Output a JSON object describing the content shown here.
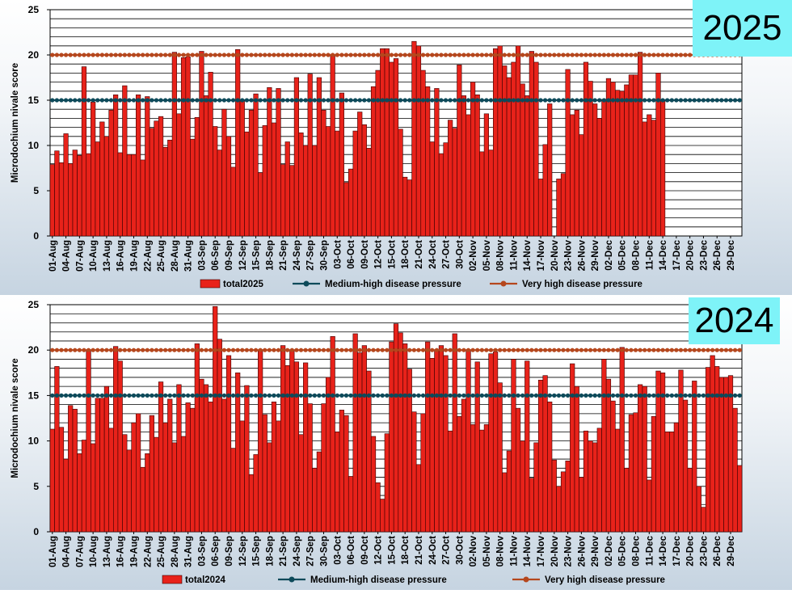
{
  "page": {
    "background": "#ffffff"
  },
  "chart_data": [
    {
      "type": "bar",
      "panel_label": "2025",
      "ylabel": "Microdochium nivale score",
      "ylim": [
        0,
        25
      ],
      "yticks": [
        0,
        5,
        10,
        15,
        20,
        25
      ],
      "x_tick_labels": [
        "01-Aug",
        "04-Aug",
        "07-Aug",
        "10-Aug",
        "13-Aug",
        "16-Aug",
        "19-Aug",
        "22-Aug",
        "25-Aug",
        "28-Aug",
        "31-Aug",
        "03-Sep",
        "06-Sep",
        "09-Sep",
        "12-Sep",
        "15-Sep",
        "18-Sep",
        "21-Sep",
        "24-Sep",
        "27-Sep",
        "30-Sep",
        "03-Oct",
        "06-Oct",
        "09-Oct",
        "12-Oct",
        "15-Oct",
        "18-Oct",
        "21-Oct",
        "24-Oct",
        "27-Oct",
        "30-Oct",
        "02-Nov",
        "05-Nov",
        "08-Nov",
        "11-Nov",
        "14-Nov",
        "17-Nov",
        "20-Nov",
        "23-Nov",
        "26-Nov",
        "29-Nov",
        "02-Dec",
        "05-Dec",
        "08-Dec",
        "11-Dec",
        "14-Dec",
        "17-Dec",
        "20-Dec",
        "23-Dec",
        "26-Dec",
        "29-Dec"
      ],
      "day_count": 153,
      "series": [
        {
          "name": "total2025",
          "color": "#e8221a",
          "values": [
            7.9,
            9.4,
            8.1,
            11.3,
            8.0,
            9.5,
            8.9,
            18.7,
            9.1,
            14.8,
            10.4,
            12.6,
            11.0,
            13.9,
            15.6,
            9.2,
            16.6,
            9.0,
            9.0,
            15.6,
            8.4,
            15.4,
            11.9,
            12.7,
            13.2,
            9.8,
            10.6,
            20.3,
            13.5,
            19.7,
            19.8,
            10.7,
            13.1,
            20.4,
            15.5,
            18.1,
            12.1,
            9.5,
            14.0,
            11.0,
            7.6,
            20.6,
            14.9,
            11.5,
            13.9,
            15.7,
            7.0,
            12.2,
            16.4,
            12.5,
            16.3,
            7.9,
            10.4,
            7.8,
            17.5,
            11.4,
            10.0,
            17.9,
            10.0,
            17.5,
            13.9,
            12.1,
            19.9,
            11.6,
            15.8,
            5.9,
            7.4,
            11.6,
            13.7,
            12.3,
            9.7,
            16.5,
            18.3,
            20.7,
            20.7,
            19.2,
            19.6,
            11.8,
            6.5,
            6.2,
            21.5,
            21.0,
            18.3,
            16.5,
            10.4,
            16.3,
            9.1,
            10.3,
            12.8,
            11.9,
            18.9,
            15.5,
            13.4,
            17.0,
            15.6,
            9.3,
            13.5,
            9.5,
            20.7,
            21.0,
            18.8,
            17.5,
            19.2,
            21.0,
            16.8,
            15.5,
            20.4,
            19.2,
            6.3,
            10.1,
            14.6,
            0,
            6.3,
            6.9,
            18.4,
            13.4,
            13.9,
            11.2,
            19.2,
            17.1,
            14.6,
            13.0,
            15.1,
            17.4,
            17.0,
            16.1,
            16.0,
            16.7,
            17.8,
            17.8,
            20.3,
            12.6,
            13.4,
            12.8,
            18.0,
            15.0,
            0,
            0,
            0,
            0,
            0,
            0,
            0,
            0,
            0,
            0,
            0,
            0,
            0,
            0,
            0,
            0,
            0
          ]
        },
        {
          "name": "Medium-high disease pressure",
          "type": "line",
          "color": "#0d4a5a",
          "values": [
            15
          ]
        },
        {
          "name": "Very high disease pressure",
          "type": "line",
          "color": "#b5471d",
          "values": [
            20
          ]
        }
      ],
      "grid": true,
      "legend_position": "bottom"
    },
    {
      "type": "bar",
      "panel_label": "2024",
      "ylabel": "Microdochium nivale score",
      "ylim": [
        0,
        25
      ],
      "yticks": [
        0,
        5,
        10,
        15,
        20,
        25
      ],
      "x_tick_labels": [
        "01-Aug",
        "04-Aug",
        "07-Aug",
        "10-Aug",
        "13-Aug",
        "16-Aug",
        "19-Aug",
        "22-Aug",
        "25-Aug",
        "28-Aug",
        "31-Aug",
        "03-Sep",
        "06-Sep",
        "09-Sep",
        "12-Sep",
        "15-Sep",
        "18-Sep",
        "21-Sep",
        "24-Sep",
        "27-Sep",
        "30-Sep",
        "03-Oct",
        "06-Oct",
        "09-Oct",
        "12-Oct",
        "15-Oct",
        "18-Oct",
        "21-Oct",
        "24-Oct",
        "27-Oct",
        "30-Oct",
        "02-Nov",
        "05-Nov",
        "08-Nov",
        "11-Nov",
        "14-Nov",
        "17-Nov",
        "20-Nov",
        "23-Nov",
        "26-Nov",
        "29-Nov",
        "02-Dec",
        "05-Dec",
        "08-Dec",
        "11-Dec",
        "14-Dec",
        "17-Dec",
        "20-Dec",
        "23-Dec",
        "26-Dec",
        "29-Dec"
      ],
      "day_count": 153,
      "series": [
        {
          "name": "total2024",
          "color": "#e8221a",
          "values": [
            11.3,
            18.2,
            11.5,
            8.0,
            13.9,
            13.5,
            8.6,
            10.1,
            19.9,
            9.7,
            14.7,
            14.7,
            16.0,
            11.4,
            20.4,
            18.8,
            10.7,
            9.0,
            12.0,
            13.0,
            7.1,
            8.6,
            12.8,
            10.4,
            16.5,
            12.0,
            14.6,
            9.8,
            16.2,
            10.5,
            14.2,
            13.6,
            20.7,
            16.8,
            16.2,
            14.3,
            24.8,
            21.2,
            14.6,
            19.4,
            9.2,
            17.5,
            12.2,
            16.1,
            6.3,
            8.5,
            20.0,
            12.9,
            9.8,
            14.3,
            12.2,
            20.5,
            18.3,
            20.0,
            18.7,
            10.7,
            18.6,
            14.1,
            7.0,
            8.8,
            14.1,
            17.0,
            21.5,
            11.0,
            13.4,
            12.8,
            6.1,
            21.8,
            19.7,
            20.5,
            17.7,
            10.5,
            5.4,
            3.6,
            10.8,
            20.9,
            22.9,
            21.9,
            20.7,
            17.9,
            13.2,
            7.4,
            13.0,
            20.9,
            19.1,
            20.0,
            20.5,
            19.4,
            11.1,
            21.8,
            12.7,
            14.6,
            20.0,
            11.8,
            18.7,
            11.2,
            11.8,
            19.6,
            19.8,
            16.4,
            6.5,
            8.9,
            19.0,
            13.6,
            10.0,
            18.8,
            5.9,
            9.8,
            16.7,
            17.2,
            14.3,
            7.9,
            5.0,
            6.6,
            7.8,
            18.5,
            16.0,
            6.0,
            11.1,
            10.0,
            9.8,
            11.4,
            19.0,
            16.8,
            14.4,
            11.3,
            20.3,
            7.0,
            12.9,
            13.1,
            16.2,
            16.0,
            5.7,
            12.7,
            17.7,
            17.5,
            11.0,
            11.0,
            12.0,
            17.8,
            14.5,
            7.0,
            16.6,
            5.0,
            2.7,
            18.1,
            19.4,
            18.2,
            17.0,
            17.0,
            17.2,
            13.6,
            7.3
          ]
        },
        {
          "name": "Medium-high disease pressure",
          "type": "line",
          "color": "#0d4a5a",
          "values": [
            15
          ]
        },
        {
          "name": "Very high disease pressure",
          "type": "line",
          "color": "#b5471d",
          "values": [
            20
          ]
        }
      ],
      "grid": true,
      "legend_position": "bottom"
    }
  ]
}
